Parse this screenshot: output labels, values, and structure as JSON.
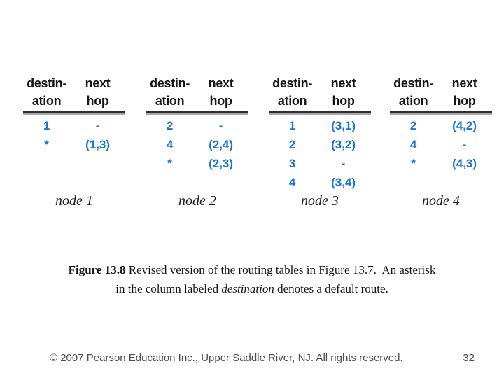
{
  "header": {
    "dest_line1": "destin-",
    "dest_line2": "ation",
    "next_line1": "next",
    "next_line2": "hop"
  },
  "tables": [
    {
      "node_label": "node 1",
      "rows": [
        [
          "1",
          "-"
        ],
        [
          "*",
          "(1,3)"
        ]
      ]
    },
    {
      "node_label": "node 2",
      "rows": [
        [
          "2",
          "-"
        ],
        [
          "4",
          "(2,4)"
        ],
        [
          "*",
          "(2,3)"
        ]
      ]
    },
    {
      "node_label": "node 3",
      "rows": [
        [
          "1",
          "(3,1)"
        ],
        [
          "2",
          "(3,2)"
        ],
        [
          "3",
          "-"
        ],
        [
          "4",
          "(3,4)"
        ]
      ]
    },
    {
      "node_label": "node 4",
      "rows": [
        [
          "2",
          "(4,2)"
        ],
        [
          "4",
          "-"
        ],
        [
          "*",
          "(4,3)"
        ]
      ]
    }
  ],
  "caption": {
    "figure_label": "Figure 13.8",
    "line1_rest": " Revised version of the routing tables in Figure 13.7.  An asterisk",
    "line2_pre": "in the column labeled ",
    "line2_term": "destination",
    "line2_post": " denotes a default route."
  },
  "footer": {
    "copyright": "© 2007 Pearson Education Inc., Upper Saddle River, NJ. All rights reserved.",
    "page_number": "32"
  },
  "colors": {
    "table_value_blue": "#1976d2",
    "rule_dark": "#2e2e2e",
    "rule_light": "#a8a8a8",
    "footer_gray": "#4d4d4d"
  }
}
